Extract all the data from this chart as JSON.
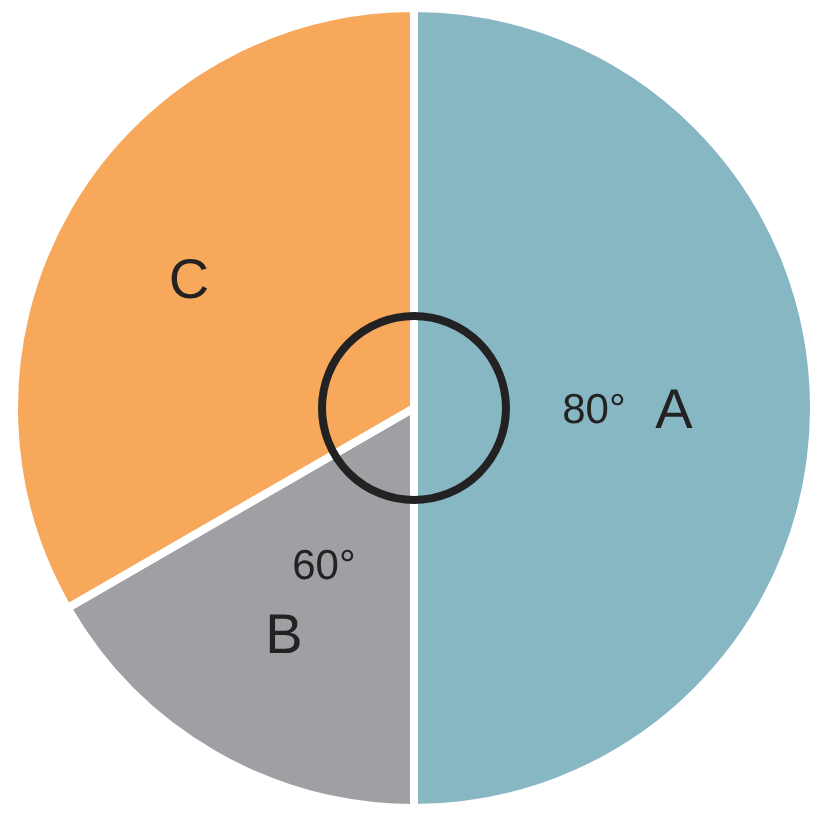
{
  "chart_data": {
    "type": "pie",
    "categories": [
      "A",
      "B",
      "C"
    ],
    "values": [
      50,
      16.67,
      33.33
    ],
    "colors": [
      "#88b7c4",
      "#a0a0a4",
      "#f7a85a"
    ],
    "annotations": [
      {
        "text": "80°",
        "x": "A"
      },
      {
        "text": "60°",
        "x": "B"
      }
    ]
  }
}
